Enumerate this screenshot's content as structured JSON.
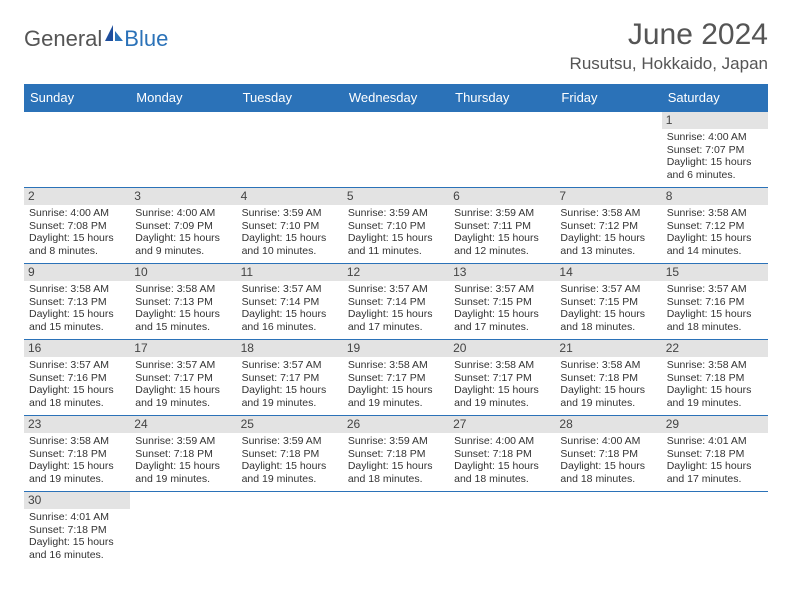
{
  "brand": {
    "part1": "General",
    "part2": "Blue"
  },
  "title": "June 2024",
  "location": "Rusutsu, Hokkaido, Japan",
  "colors": {
    "header_bg": "#2b72b8",
    "header_text": "#ffffff",
    "daynum_bg": "#e3e3e3",
    "border": "#2b72b8",
    "body_text": "#333333",
    "title_text": "#555555"
  },
  "weekdays": [
    "Sunday",
    "Monday",
    "Tuesday",
    "Wednesday",
    "Thursday",
    "Friday",
    "Saturday"
  ],
  "weeks": [
    [
      null,
      null,
      null,
      null,
      null,
      null,
      {
        "d": "1",
        "sr": "Sunrise: 4:00 AM",
        "ss": "Sunset: 7:07 PM",
        "dl1": "Daylight: 15 hours",
        "dl2": "and 6 minutes."
      }
    ],
    [
      {
        "d": "2",
        "sr": "Sunrise: 4:00 AM",
        "ss": "Sunset: 7:08 PM",
        "dl1": "Daylight: 15 hours",
        "dl2": "and 8 minutes."
      },
      {
        "d": "3",
        "sr": "Sunrise: 4:00 AM",
        "ss": "Sunset: 7:09 PM",
        "dl1": "Daylight: 15 hours",
        "dl2": "and 9 minutes."
      },
      {
        "d": "4",
        "sr": "Sunrise: 3:59 AM",
        "ss": "Sunset: 7:10 PM",
        "dl1": "Daylight: 15 hours",
        "dl2": "and 10 minutes."
      },
      {
        "d": "5",
        "sr": "Sunrise: 3:59 AM",
        "ss": "Sunset: 7:10 PM",
        "dl1": "Daylight: 15 hours",
        "dl2": "and 11 minutes."
      },
      {
        "d": "6",
        "sr": "Sunrise: 3:59 AM",
        "ss": "Sunset: 7:11 PM",
        "dl1": "Daylight: 15 hours",
        "dl2": "and 12 minutes."
      },
      {
        "d": "7",
        "sr": "Sunrise: 3:58 AM",
        "ss": "Sunset: 7:12 PM",
        "dl1": "Daylight: 15 hours",
        "dl2": "and 13 minutes."
      },
      {
        "d": "8",
        "sr": "Sunrise: 3:58 AM",
        "ss": "Sunset: 7:12 PM",
        "dl1": "Daylight: 15 hours",
        "dl2": "and 14 minutes."
      }
    ],
    [
      {
        "d": "9",
        "sr": "Sunrise: 3:58 AM",
        "ss": "Sunset: 7:13 PM",
        "dl1": "Daylight: 15 hours",
        "dl2": "and 15 minutes."
      },
      {
        "d": "10",
        "sr": "Sunrise: 3:58 AM",
        "ss": "Sunset: 7:13 PM",
        "dl1": "Daylight: 15 hours",
        "dl2": "and 15 minutes."
      },
      {
        "d": "11",
        "sr": "Sunrise: 3:57 AM",
        "ss": "Sunset: 7:14 PM",
        "dl1": "Daylight: 15 hours",
        "dl2": "and 16 minutes."
      },
      {
        "d": "12",
        "sr": "Sunrise: 3:57 AM",
        "ss": "Sunset: 7:14 PM",
        "dl1": "Daylight: 15 hours",
        "dl2": "and 17 minutes."
      },
      {
        "d": "13",
        "sr": "Sunrise: 3:57 AM",
        "ss": "Sunset: 7:15 PM",
        "dl1": "Daylight: 15 hours",
        "dl2": "and 17 minutes."
      },
      {
        "d": "14",
        "sr": "Sunrise: 3:57 AM",
        "ss": "Sunset: 7:15 PM",
        "dl1": "Daylight: 15 hours",
        "dl2": "and 18 minutes."
      },
      {
        "d": "15",
        "sr": "Sunrise: 3:57 AM",
        "ss": "Sunset: 7:16 PM",
        "dl1": "Daylight: 15 hours",
        "dl2": "and 18 minutes."
      }
    ],
    [
      {
        "d": "16",
        "sr": "Sunrise: 3:57 AM",
        "ss": "Sunset: 7:16 PM",
        "dl1": "Daylight: 15 hours",
        "dl2": "and 18 minutes."
      },
      {
        "d": "17",
        "sr": "Sunrise: 3:57 AM",
        "ss": "Sunset: 7:17 PM",
        "dl1": "Daylight: 15 hours",
        "dl2": "and 19 minutes."
      },
      {
        "d": "18",
        "sr": "Sunrise: 3:57 AM",
        "ss": "Sunset: 7:17 PM",
        "dl1": "Daylight: 15 hours",
        "dl2": "and 19 minutes."
      },
      {
        "d": "19",
        "sr": "Sunrise: 3:58 AM",
        "ss": "Sunset: 7:17 PM",
        "dl1": "Daylight: 15 hours",
        "dl2": "and 19 minutes."
      },
      {
        "d": "20",
        "sr": "Sunrise: 3:58 AM",
        "ss": "Sunset: 7:17 PM",
        "dl1": "Daylight: 15 hours",
        "dl2": "and 19 minutes."
      },
      {
        "d": "21",
        "sr": "Sunrise: 3:58 AM",
        "ss": "Sunset: 7:18 PM",
        "dl1": "Daylight: 15 hours",
        "dl2": "and 19 minutes."
      },
      {
        "d": "22",
        "sr": "Sunrise: 3:58 AM",
        "ss": "Sunset: 7:18 PM",
        "dl1": "Daylight: 15 hours",
        "dl2": "and 19 minutes."
      }
    ],
    [
      {
        "d": "23",
        "sr": "Sunrise: 3:58 AM",
        "ss": "Sunset: 7:18 PM",
        "dl1": "Daylight: 15 hours",
        "dl2": "and 19 minutes."
      },
      {
        "d": "24",
        "sr": "Sunrise: 3:59 AM",
        "ss": "Sunset: 7:18 PM",
        "dl1": "Daylight: 15 hours",
        "dl2": "and 19 minutes."
      },
      {
        "d": "25",
        "sr": "Sunrise: 3:59 AM",
        "ss": "Sunset: 7:18 PM",
        "dl1": "Daylight: 15 hours",
        "dl2": "and 19 minutes."
      },
      {
        "d": "26",
        "sr": "Sunrise: 3:59 AM",
        "ss": "Sunset: 7:18 PM",
        "dl1": "Daylight: 15 hours",
        "dl2": "and 18 minutes."
      },
      {
        "d": "27",
        "sr": "Sunrise: 4:00 AM",
        "ss": "Sunset: 7:18 PM",
        "dl1": "Daylight: 15 hours",
        "dl2": "and 18 minutes."
      },
      {
        "d": "28",
        "sr": "Sunrise: 4:00 AM",
        "ss": "Sunset: 7:18 PM",
        "dl1": "Daylight: 15 hours",
        "dl2": "and 18 minutes."
      },
      {
        "d": "29",
        "sr": "Sunrise: 4:01 AM",
        "ss": "Sunset: 7:18 PM",
        "dl1": "Daylight: 15 hours",
        "dl2": "and 17 minutes."
      }
    ],
    [
      {
        "d": "30",
        "sr": "Sunrise: 4:01 AM",
        "ss": "Sunset: 7:18 PM",
        "dl1": "Daylight: 15 hours",
        "dl2": "and 16 minutes."
      },
      null,
      null,
      null,
      null,
      null,
      null
    ]
  ]
}
